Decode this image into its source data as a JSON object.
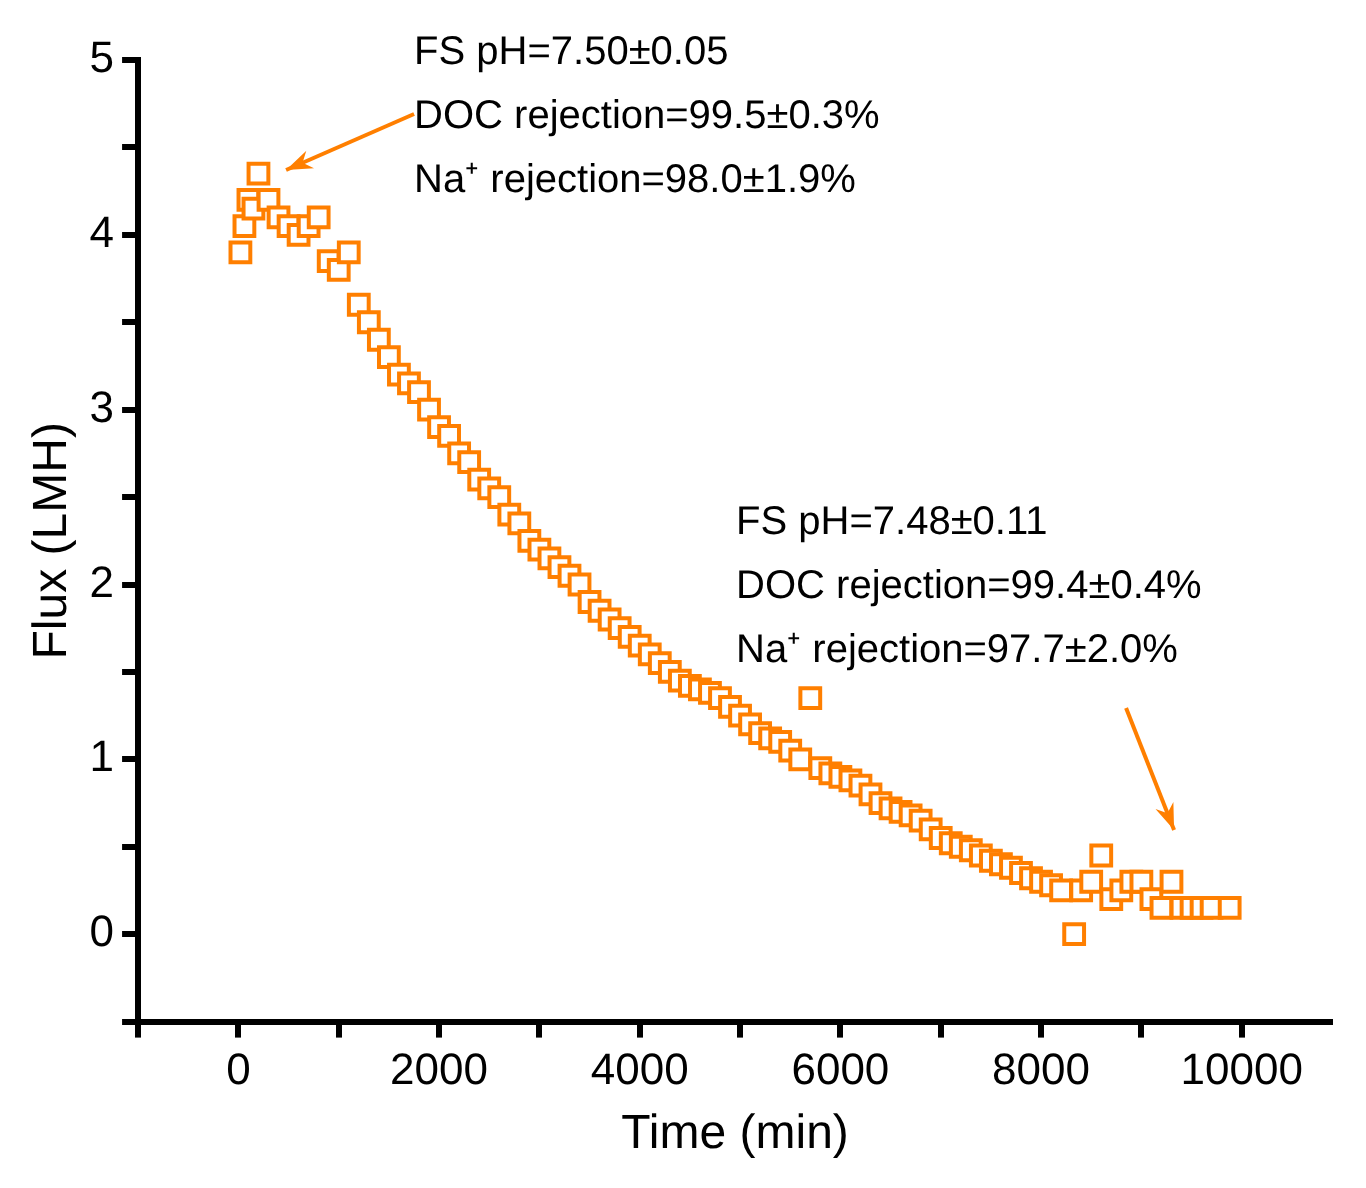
{
  "chart_data": {
    "type": "scatter",
    "xlabel": "Time (min)",
    "ylabel": "Flux (LMH)",
    "xlim": [
      -1000,
      10900
    ],
    "ylim": [
      -0.5,
      5
    ],
    "xticks": [
      {
        "value": -1000,
        "label": null
      },
      0,
      {
        "value": 1000,
        "label": null
      },
      2000,
      {
        "value": 3000,
        "label": null
      },
      4000,
      {
        "value": 5000,
        "label": null
      },
      6000,
      {
        "value": 7000,
        "label": null
      },
      8000,
      {
        "value": 9000,
        "label": null
      },
      10000
    ],
    "yticks": [
      {
        "value": -0.5,
        "label": null
      },
      0,
      {
        "value": 0.5,
        "label": null
      },
      1,
      {
        "value": 1.5,
        "label": null
      },
      2,
      {
        "value": 2.5,
        "label": null
      },
      3,
      {
        "value": 3.5,
        "label": null
      },
      4,
      {
        "value": 4.5,
        "label": null
      },
      5
    ],
    "grid": false,
    "legend": false,
    "marker": "square",
    "series": [
      {
        "color": "#ff7f00",
        "x": [
          20,
          60,
          100,
          150,
          200,
          300,
          400,
          500,
          600,
          700,
          800,
          900,
          1000,
          1100,
          1200,
          1300,
          1400,
          1500,
          1600,
          1700,
          1800,
          1900,
          2000,
          2100,
          2200,
          2300,
          2400,
          2500,
          2600,
          2700,
          2800,
          2900,
          3000,
          3100,
          3200,
          3300,
          3400,
          3500,
          3600,
          3700,
          3800,
          3900,
          4000,
          4100,
          4200,
          4300,
          4400,
          4500,
          4600,
          4700,
          4800,
          4900,
          5000,
          5100,
          5200,
          5300,
          5400,
          5500,
          5600,
          5700,
          5800,
          5900,
          6000,
          6100,
          6200,
          6300,
          6400,
          6500,
          6600,
          6700,
          6800,
          6900,
          7000,
          7100,
          7200,
          7300,
          7400,
          7500,
          7600,
          7700,
          7800,
          7900,
          8000,
          8100,
          8200,
          8330,
          8400,
          8500,
          8600,
          8700,
          8800,
          8900,
          9000,
          9100,
          9200,
          9300,
          9400,
          9500,
          9600,
          9700,
          9880
        ],
        "values": [
          3.9,
          4.05,
          4.2,
          4.15,
          4.35,
          4.2,
          4.1,
          4.05,
          4.0,
          4.05,
          4.1,
          3.85,
          3.8,
          3.9,
          3.6,
          3.5,
          3.4,
          3.3,
          3.2,
          3.15,
          3.1,
          3.0,
          2.9,
          2.85,
          2.75,
          2.7,
          2.6,
          2.55,
          2.5,
          2.4,
          2.35,
          2.25,
          2.2,
          2.15,
          2.1,
          2.05,
          2.0,
          1.9,
          1.85,
          1.8,
          1.75,
          1.7,
          1.65,
          1.6,
          1.55,
          1.5,
          1.45,
          1.42,
          1.4,
          1.38,
          1.35,
          1.3,
          1.25,
          1.2,
          1.15,
          1.12,
          1.1,
          1.05,
          1.0,
          1.35,
          0.95,
          0.92,
          0.9,
          0.88,
          0.85,
          0.8,
          0.75,
          0.72,
          0.7,
          0.68,
          0.65,
          0.6,
          0.55,
          0.52,
          0.5,
          0.48,
          0.45,
          0.42,
          0.4,
          0.38,
          0.35,
          0.32,
          0.3,
          0.28,
          0.25,
          0.0,
          0.25,
          0.3,
          0.45,
          0.2,
          0.25,
          0.3,
          0.3,
          0.2,
          0.15,
          0.3,
          0.15,
          0.15,
          0.15,
          0.15,
          0.15
        ]
      }
    ],
    "annotations": [
      "FS pH=7.50±0.05\nDOC rejection=99.5±0.3%\nNa⁺ rejection=98.0±1.9%",
      "FS pH=7.48±0.11\nDOC rejection=99.4±0.4%\nNa⁺ rejection=97.7±2.0%"
    ]
  }
}
